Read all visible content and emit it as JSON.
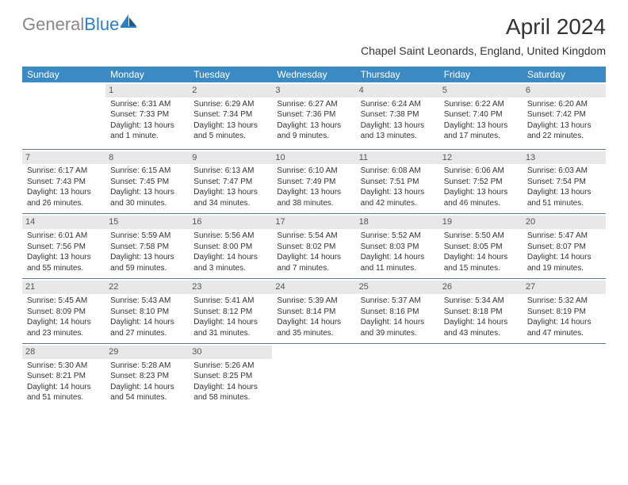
{
  "logo": {
    "part1": "General",
    "part2": "Blue"
  },
  "title": "April 2024",
  "location": "Chapel Saint Leonards, England, United Kingdom",
  "colors": {
    "header_bg": "#3b8ac4",
    "daynum_bg": "#e8e8e8",
    "border": "#5a7a9a",
    "logo_gray": "#888888",
    "logo_blue": "#2a7fc9"
  },
  "weekdays": [
    "Sunday",
    "Monday",
    "Tuesday",
    "Wednesday",
    "Thursday",
    "Friday",
    "Saturday"
  ],
  "weeks": [
    [
      {
        "n": "",
        "sr": "",
        "ss": "",
        "dl": ""
      },
      {
        "n": "1",
        "sr": "Sunrise: 6:31 AM",
        "ss": "Sunset: 7:33 PM",
        "dl": "Daylight: 13 hours and 1 minute."
      },
      {
        "n": "2",
        "sr": "Sunrise: 6:29 AM",
        "ss": "Sunset: 7:34 PM",
        "dl": "Daylight: 13 hours and 5 minutes."
      },
      {
        "n": "3",
        "sr": "Sunrise: 6:27 AM",
        "ss": "Sunset: 7:36 PM",
        "dl": "Daylight: 13 hours and 9 minutes."
      },
      {
        "n": "4",
        "sr": "Sunrise: 6:24 AM",
        "ss": "Sunset: 7:38 PM",
        "dl": "Daylight: 13 hours and 13 minutes."
      },
      {
        "n": "5",
        "sr": "Sunrise: 6:22 AM",
        "ss": "Sunset: 7:40 PM",
        "dl": "Daylight: 13 hours and 17 minutes."
      },
      {
        "n": "6",
        "sr": "Sunrise: 6:20 AM",
        "ss": "Sunset: 7:42 PM",
        "dl": "Daylight: 13 hours and 22 minutes."
      }
    ],
    [
      {
        "n": "7",
        "sr": "Sunrise: 6:17 AM",
        "ss": "Sunset: 7:43 PM",
        "dl": "Daylight: 13 hours and 26 minutes."
      },
      {
        "n": "8",
        "sr": "Sunrise: 6:15 AM",
        "ss": "Sunset: 7:45 PM",
        "dl": "Daylight: 13 hours and 30 minutes."
      },
      {
        "n": "9",
        "sr": "Sunrise: 6:13 AM",
        "ss": "Sunset: 7:47 PM",
        "dl": "Daylight: 13 hours and 34 minutes."
      },
      {
        "n": "10",
        "sr": "Sunrise: 6:10 AM",
        "ss": "Sunset: 7:49 PM",
        "dl": "Daylight: 13 hours and 38 minutes."
      },
      {
        "n": "11",
        "sr": "Sunrise: 6:08 AM",
        "ss": "Sunset: 7:51 PM",
        "dl": "Daylight: 13 hours and 42 minutes."
      },
      {
        "n": "12",
        "sr": "Sunrise: 6:06 AM",
        "ss": "Sunset: 7:52 PM",
        "dl": "Daylight: 13 hours and 46 minutes."
      },
      {
        "n": "13",
        "sr": "Sunrise: 6:03 AM",
        "ss": "Sunset: 7:54 PM",
        "dl": "Daylight: 13 hours and 51 minutes."
      }
    ],
    [
      {
        "n": "14",
        "sr": "Sunrise: 6:01 AM",
        "ss": "Sunset: 7:56 PM",
        "dl": "Daylight: 13 hours and 55 minutes."
      },
      {
        "n": "15",
        "sr": "Sunrise: 5:59 AM",
        "ss": "Sunset: 7:58 PM",
        "dl": "Daylight: 13 hours and 59 minutes."
      },
      {
        "n": "16",
        "sr": "Sunrise: 5:56 AM",
        "ss": "Sunset: 8:00 PM",
        "dl": "Daylight: 14 hours and 3 minutes."
      },
      {
        "n": "17",
        "sr": "Sunrise: 5:54 AM",
        "ss": "Sunset: 8:02 PM",
        "dl": "Daylight: 14 hours and 7 minutes."
      },
      {
        "n": "18",
        "sr": "Sunrise: 5:52 AM",
        "ss": "Sunset: 8:03 PM",
        "dl": "Daylight: 14 hours and 11 minutes."
      },
      {
        "n": "19",
        "sr": "Sunrise: 5:50 AM",
        "ss": "Sunset: 8:05 PM",
        "dl": "Daylight: 14 hours and 15 minutes."
      },
      {
        "n": "20",
        "sr": "Sunrise: 5:47 AM",
        "ss": "Sunset: 8:07 PM",
        "dl": "Daylight: 14 hours and 19 minutes."
      }
    ],
    [
      {
        "n": "21",
        "sr": "Sunrise: 5:45 AM",
        "ss": "Sunset: 8:09 PM",
        "dl": "Daylight: 14 hours and 23 minutes."
      },
      {
        "n": "22",
        "sr": "Sunrise: 5:43 AM",
        "ss": "Sunset: 8:10 PM",
        "dl": "Daylight: 14 hours and 27 minutes."
      },
      {
        "n": "23",
        "sr": "Sunrise: 5:41 AM",
        "ss": "Sunset: 8:12 PM",
        "dl": "Daylight: 14 hours and 31 minutes."
      },
      {
        "n": "24",
        "sr": "Sunrise: 5:39 AM",
        "ss": "Sunset: 8:14 PM",
        "dl": "Daylight: 14 hours and 35 minutes."
      },
      {
        "n": "25",
        "sr": "Sunrise: 5:37 AM",
        "ss": "Sunset: 8:16 PM",
        "dl": "Daylight: 14 hours and 39 minutes."
      },
      {
        "n": "26",
        "sr": "Sunrise: 5:34 AM",
        "ss": "Sunset: 8:18 PM",
        "dl": "Daylight: 14 hours and 43 minutes."
      },
      {
        "n": "27",
        "sr": "Sunrise: 5:32 AM",
        "ss": "Sunset: 8:19 PM",
        "dl": "Daylight: 14 hours and 47 minutes."
      }
    ],
    [
      {
        "n": "28",
        "sr": "Sunrise: 5:30 AM",
        "ss": "Sunset: 8:21 PM",
        "dl": "Daylight: 14 hours and 51 minutes."
      },
      {
        "n": "29",
        "sr": "Sunrise: 5:28 AM",
        "ss": "Sunset: 8:23 PM",
        "dl": "Daylight: 14 hours and 54 minutes."
      },
      {
        "n": "30",
        "sr": "Sunrise: 5:26 AM",
        "ss": "Sunset: 8:25 PM",
        "dl": "Daylight: 14 hours and 58 minutes."
      },
      {
        "n": "",
        "sr": "",
        "ss": "",
        "dl": ""
      },
      {
        "n": "",
        "sr": "",
        "ss": "",
        "dl": ""
      },
      {
        "n": "",
        "sr": "",
        "ss": "",
        "dl": ""
      },
      {
        "n": "",
        "sr": "",
        "ss": "",
        "dl": ""
      }
    ]
  ]
}
